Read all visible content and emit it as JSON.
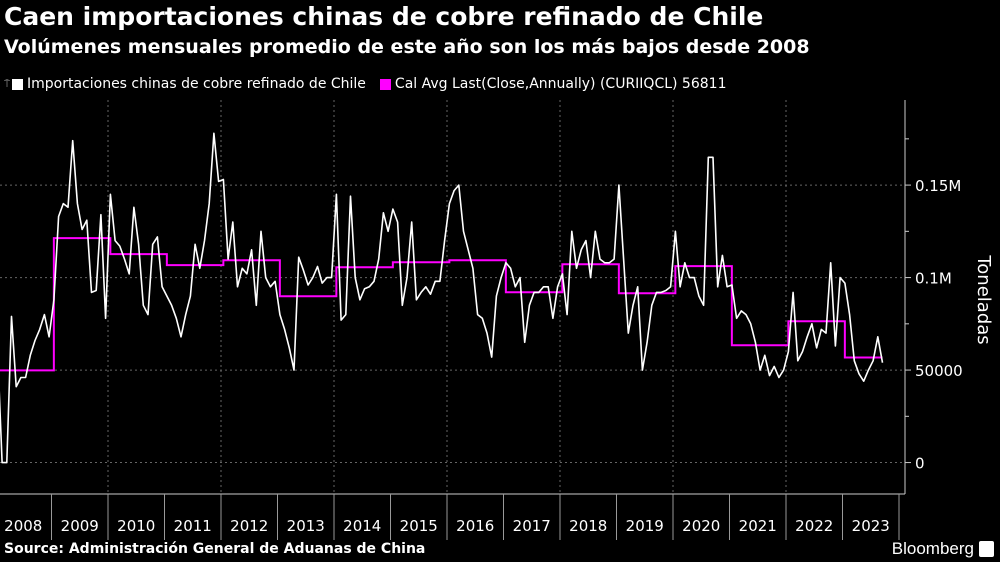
{
  "header": {
    "title": "Caen importaciones chinas de cobre refinado de Chile",
    "subtitle": "Volúmenes mensuales promedio de este año son los más bajos desde 2008"
  },
  "footer": {
    "source": "Source: Administración General de Aduanas de China",
    "brand": "Bloomberg"
  },
  "chart_data": {
    "type": "line",
    "title": "Caen importaciones chinas de cobre refinado de Chile",
    "ylabel": "Toneladas",
    "xlabel": "",
    "ylim": [
      -17000,
      196000
    ],
    "grid": true,
    "legend_placement": "top-left",
    "y_ticks": [
      {
        "value": 0,
        "label": "0"
      },
      {
        "value": 50000,
        "label": "50000"
      },
      {
        "value": 100000,
        "label": "0.1M"
      },
      {
        "value": 150000,
        "label": "0.15M"
      }
    ],
    "years": [
      "2008",
      "2009",
      "2010",
      "2011",
      "2012",
      "2013",
      "2014",
      "2015",
      "2016",
      "2017",
      "2018",
      "2019",
      "2020",
      "2021",
      "2022",
      "2023"
    ],
    "series": [
      {
        "name": "Importaciones chinas de cobre refinado de Chile",
        "color": "#ffffff",
        "frequency": "monthly",
        "start": "2008-01",
        "values": [
          63000,
          0,
          0,
          79000,
          41000,
          46000,
          46000,
          58000,
          66000,
          72000,
          80000,
          68000,
          88000,
          133000,
          140000,
          138000,
          174000,
          140000,
          126000,
          131000,
          92000,
          93000,
          134000,
          78000,
          145000,
          120000,
          117000,
          110000,
          102000,
          138000,
          118000,
          85000,
          80000,
          118000,
          122000,
          95000,
          90000,
          85000,
          78000,
          68000,
          80000,
          90000,
          118000,
          105000,
          120000,
          140000,
          178000,
          152000,
          153000,
          110000,
          130000,
          95000,
          105000,
          102000,
          115000,
          85000,
          125000,
          100000,
          95000,
          98000,
          80000,
          72000,
          62000,
          50000,
          111000,
          104000,
          96000,
          100000,
          106000,
          97000,
          100000,
          100000,
          145000,
          77000,
          80000,
          144000,
          100000,
          88000,
          94000,
          95000,
          98000,
          110000,
          135000,
          125000,
          137000,
          130000,
          85000,
          100000,
          130000,
          88000,
          92000,
          95000,
          91000,
          98000,
          98000,
          120000,
          140000,
          147000,
          150000,
          125000,
          115000,
          105000,
          80000,
          78000,
          70000,
          57000,
          90000,
          100000,
          108000,
          105000,
          95000,
          100000,
          65000,
          85000,
          92000,
          92000,
          95000,
          95000,
          78000,
          95000,
          102000,
          80000,
          125000,
          105000,
          115000,
          120000,
          100000,
          125000,
          110000,
          108000,
          108000,
          110000,
          150000,
          110000,
          70000,
          85000,
          95000,
          50000,
          65000,
          85000,
          92000,
          92000,
          93000,
          95000,
          125000,
          95000,
          108000,
          100000,
          100000,
          90000,
          85000,
          165000,
          165000,
          95000,
          112000,
          95000,
          96000,
          78000,
          82000,
          80000,
          75000,
          65000,
          50000,
          58000,
          47000,
          52000,
          46000,
          50000,
          60000,
          92000,
          55000,
          60000,
          68000,
          75000,
          62000,
          72000,
          70000,
          108000,
          63000,
          100000,
          97000,
          80000,
          55000,
          48000,
          44000,
          50000,
          55000,
          68000,
          54000
        ]
      },
      {
        "name": "Cal Avg Last(Close,Annually) (CURIIQCL) 56811",
        "color": "#ff00ff",
        "frequency": "annual",
        "values": [
          49800,
          121300,
          112700,
          106700,
          109400,
          89900,
          105600,
          108300,
          109400,
          92100,
          107200,
          91500,
          106200,
          63400,
          76400,
          56811
        ]
      }
    ]
  }
}
